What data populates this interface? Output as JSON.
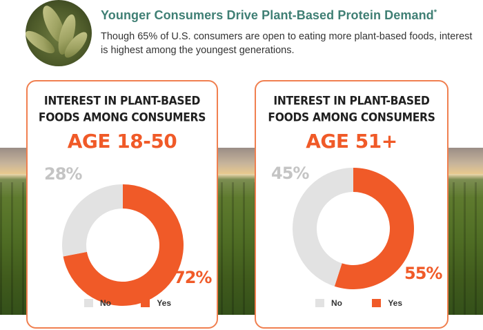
{
  "header": {
    "title": "Younger Consumers Drive Plant-Based Protein Demand",
    "title_mark": "*",
    "subtitle": "Though 65% of U.S. consumers are open to eating more plant-based foods, interest is highest among the youngest generations."
  },
  "colors": {
    "yes": "#f05a28",
    "no": "#e2e2e2",
    "accent": "#3f7f74"
  },
  "chart_data": [
    {
      "type": "pie",
      "title_line1": "INTEREST IN PLANT-BASED",
      "title_line2": "FOODS AMONG CONSUMERS",
      "subtitle": "AGE 18-50",
      "categories": [
        "No",
        "Yes"
      ],
      "values": [
        28,
        72
      ],
      "labels": [
        "28%",
        "72%"
      ],
      "legend": [
        "No",
        "Yes"
      ]
    },
    {
      "type": "pie",
      "title_line1": "INTEREST IN PLANT-BASED",
      "title_line2": "FOODS AMONG CONSUMERS",
      "subtitle": "AGE 51+",
      "categories": [
        "No",
        "Yes"
      ],
      "values": [
        45,
        55
      ],
      "labels": [
        "45%",
        "55%"
      ],
      "legend": [
        "No",
        "Yes"
      ]
    }
  ]
}
